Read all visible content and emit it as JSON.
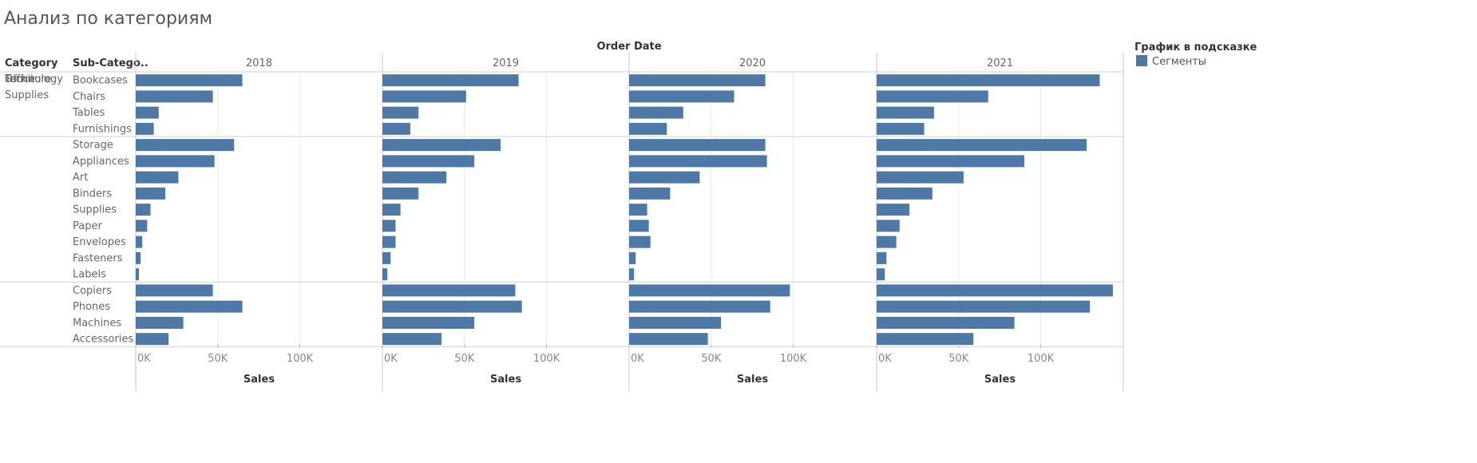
{
  "title": "Анализ по категориям",
  "legend": {
    "title": "График в подсказке",
    "items": [
      {
        "label": "Сегменты",
        "color": "#4e79a7"
      }
    ]
  },
  "chart_data": {
    "type": "bar",
    "orientation": "horizontal",
    "column_header": "Order Date",
    "row_headers": [
      "Category",
      "Sub-Catego.."
    ],
    "xlabel": "Sales",
    "xlim": [
      0,
      150000
    ],
    "xticks": [
      0,
      50000,
      100000
    ],
    "xtick_labels": [
      "0K",
      "50K",
      "100K"
    ],
    "bar_color": "#4e79a7",
    "years": [
      "2018",
      "2019",
      "2020",
      "2021"
    ],
    "groups": [
      {
        "category": "Furniture",
        "category_lines": [
          "Furniture"
        ],
        "subcategories": [
          "Bookcases",
          "Chairs",
          "Tables",
          "Furnishings"
        ]
      },
      {
        "category": "Office Supplies",
        "category_lines": [
          "Office",
          "Supplies"
        ],
        "subcategories": [
          "Storage",
          "Appliances",
          "Art",
          "Binders",
          "Supplies",
          "Paper",
          "Envelopes",
          "Fasteners",
          "Labels"
        ]
      },
      {
        "category": "Technology",
        "category_lines": [
          "Technology"
        ],
        "subcategories": [
          "Copiers",
          "Phones",
          "Machines",
          "Accessories"
        ]
      }
    ],
    "values": {
      "2018": [
        65000,
        47000,
        14000,
        11000,
        60000,
        48000,
        26000,
        18000,
        9000,
        7000,
        4000,
        3000,
        2000,
        47000,
        65000,
        29000,
        20000
      ],
      "2019": [
        83000,
        51000,
        22000,
        17000,
        72000,
        56000,
        39000,
        22000,
        11000,
        8000,
        8000,
        5000,
        3000,
        81000,
        85000,
        56000,
        36000
      ],
      "2020": [
        83000,
        64000,
        33000,
        23000,
        83000,
        84000,
        43000,
        25000,
        11000,
        12000,
        13000,
        4000,
        3000,
        98000,
        86000,
        56000,
        48000
      ],
      "2021": [
        136000,
        68000,
        35000,
        29000,
        128000,
        90000,
        53000,
        34000,
        20000,
        14000,
        12000,
        6000,
        5000,
        144000,
        130000,
        84000,
        59000
      ]
    }
  }
}
